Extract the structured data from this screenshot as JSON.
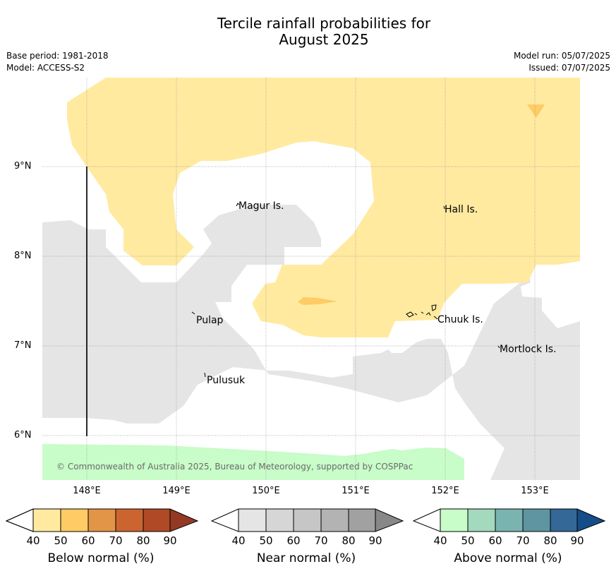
{
  "header": {
    "title_line1": "Tercile rainfall probabilities for",
    "title_line2": "August 2025",
    "base_period": "Base period: 1981-2018",
    "model": "Model: ACCESS-S2",
    "model_run": "Model run: 05/07/2025",
    "issued": "Issued: 07/07/2025"
  },
  "map": {
    "lat_labels": [
      "9°N",
      "8°N",
      "7°N",
      "6°N"
    ],
    "lon_labels": [
      "148°E",
      "149°E",
      "150°E",
      "151°E",
      "152°E",
      "153°E"
    ],
    "places": [
      "Magur Is.",
      "Hall Is.",
      "Pulap",
      "Chuuk Is.",
      "Mortlock Is.",
      "Pulusuk"
    ],
    "copyright": "© Commonwealth of Australia 2025, Bureau of Meteorology, supported by COSPPac",
    "colors": {
      "below_40": "#ffeaa0",
      "below_50": "#fecb65",
      "near_40": "#e5e5e5",
      "above_40": "#c8fcc8"
    }
  },
  "legend": {
    "below": {
      "title": "Below normal (%)",
      "ticks": [
        "40",
        "50",
        "60",
        "70",
        "80",
        "90"
      ],
      "colors": [
        "#ffeaa0",
        "#fecb65",
        "#e29546",
        "#cc6430",
        "#af4926",
        "#943a24"
      ]
    },
    "near": {
      "title": "Near normal (%)",
      "ticks": [
        "40",
        "50",
        "60",
        "70",
        "80",
        "90"
      ],
      "colors": [
        "#e5e5e5",
        "#d6d6d6",
        "#c6c6c6",
        "#b3b3b3",
        "#a1a1a1",
        "#888888"
      ]
    },
    "above": {
      "title": "Above normal (%)",
      "ticks": [
        "40",
        "50",
        "60",
        "70",
        "80",
        "90"
      ],
      "colors": [
        "#c8fcc8",
        "#a3d9bd",
        "#7ab4b0",
        "#5e95a0",
        "#336897",
        "#154d88"
      ]
    }
  }
}
